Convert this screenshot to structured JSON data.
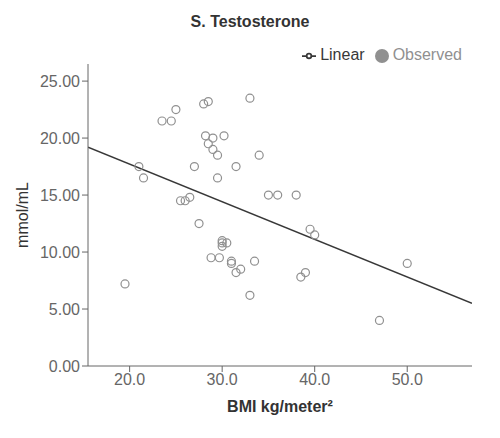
{
  "chart_data": {
    "type": "scatter",
    "title": "S. Testosterone",
    "xlabel": "BMI kg/meter²",
    "ylabel": "mmol/mL",
    "xlim": [
      15.5,
      57.0
    ],
    "ylim": [
      0.0,
      26.5
    ],
    "xticks": [
      {
        "value": 20.0,
        "label": "20.0"
      },
      {
        "value": 30.0,
        "label": "30.0"
      },
      {
        "value": 40.0,
        "label": "40.0"
      },
      {
        "value": 50.0,
        "label": "50.0"
      }
    ],
    "yticks": [
      {
        "value": 0.0,
        "label": "0.00"
      },
      {
        "value": 5.0,
        "label": "5.00"
      },
      {
        "value": 10.0,
        "label": "10.00"
      },
      {
        "value": 15.0,
        "label": "15.00"
      },
      {
        "value": 20.0,
        "label": "20.00"
      },
      {
        "value": 25.0,
        "label": "25.00"
      }
    ],
    "grid": false,
    "legend": "upper right",
    "series": [
      {
        "name": "Observed",
        "type": "scatter",
        "marker": "o",
        "color": "#909090",
        "x": [
          19.5,
          21.0,
          21.5,
          23.5,
          24.5,
          25.0,
          25.5,
          26.0,
          26.5,
          27.0,
          27.5,
          28.0,
          28.2,
          28.5,
          28.5,
          28.8,
          29.0,
          29.0,
          29.5,
          29.5,
          29.7,
          30.0,
          30.0,
          30.0,
          30.2,
          30.5,
          31.0,
          31.0,
          31.5,
          31.5,
          32.0,
          33.0,
          33.0,
          33.5,
          34.0,
          35.0,
          36.0,
          38.0,
          38.5,
          39.0,
          39.5,
          40.0,
          47.0,
          50.0
        ],
        "values": [
          7.2,
          17.5,
          16.5,
          21.5,
          21.5,
          22.5,
          14.5,
          14.5,
          14.8,
          17.5,
          12.5,
          23.0,
          20.2,
          23.2,
          19.5,
          9.5,
          20.0,
          19.0,
          18.5,
          16.5,
          9.5,
          10.5,
          11.0,
          10.8,
          20.2,
          10.8,
          9.0,
          9.2,
          8.2,
          17.5,
          8.5,
          6.2,
          23.5,
          9.2,
          18.5,
          15.0,
          15.0,
          15.0,
          7.8,
          8.2,
          12.0,
          11.5,
          4.0,
          9.0
        ]
      },
      {
        "name": "Linear",
        "type": "line",
        "line_style": "solid",
        "color": "#383838",
        "x": [
          15.5,
          57.0
        ],
        "values": [
          19.2,
          5.5
        ]
      }
    ]
  }
}
